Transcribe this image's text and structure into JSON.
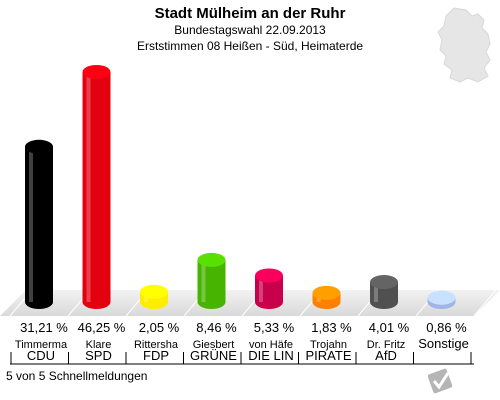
{
  "title": "Stadt Mülheim an der Ruhr",
  "subtitle1": "Bundestagswahl 22.09.2013",
  "subtitle2": "Erststimmen 08 Heißen - Süd, Heimaterde",
  "footer": "5 von 5 Schnellmeldungen",
  "logo_text": "VOTE MANAGER",
  "chart_data": {
    "type": "bar",
    "categories": [
      "CDU",
      "SPD",
      "FDP",
      "GRÜNE",
      "DIE LINKE",
      "PIRATEN",
      "AfD",
      "Sonstige"
    ],
    "candidates": [
      "Timmerma",
      "Klare",
      "Rittersha",
      "Giesbert",
      "von Häfe",
      "Trojahn",
      "Dr. Fritz",
      ""
    ],
    "values": [
      31.21,
      46.25,
      2.05,
      8.46,
      5.33,
      1.83,
      4.01,
      0.86
    ],
    "value_labels": [
      "31,21 %",
      "46,25 %",
      "2,05 %",
      "8,46 %",
      "5,33 %",
      "1,83 %",
      "4,01 %",
      "0,86 %"
    ],
    "party_labels": [
      "CDU",
      "SPD",
      "FDP",
      "GRÜNE",
      "DIE LIN",
      "PIRATE",
      "AfD",
      "Sonstige"
    ],
    "colors": [
      "#000000",
      "#e3000f",
      "#ffed00",
      "#46b400",
      "#c8004b",
      "#ff8000",
      "#505050",
      "#a0b4e6"
    ],
    "ylim": [
      0,
      50
    ]
  }
}
